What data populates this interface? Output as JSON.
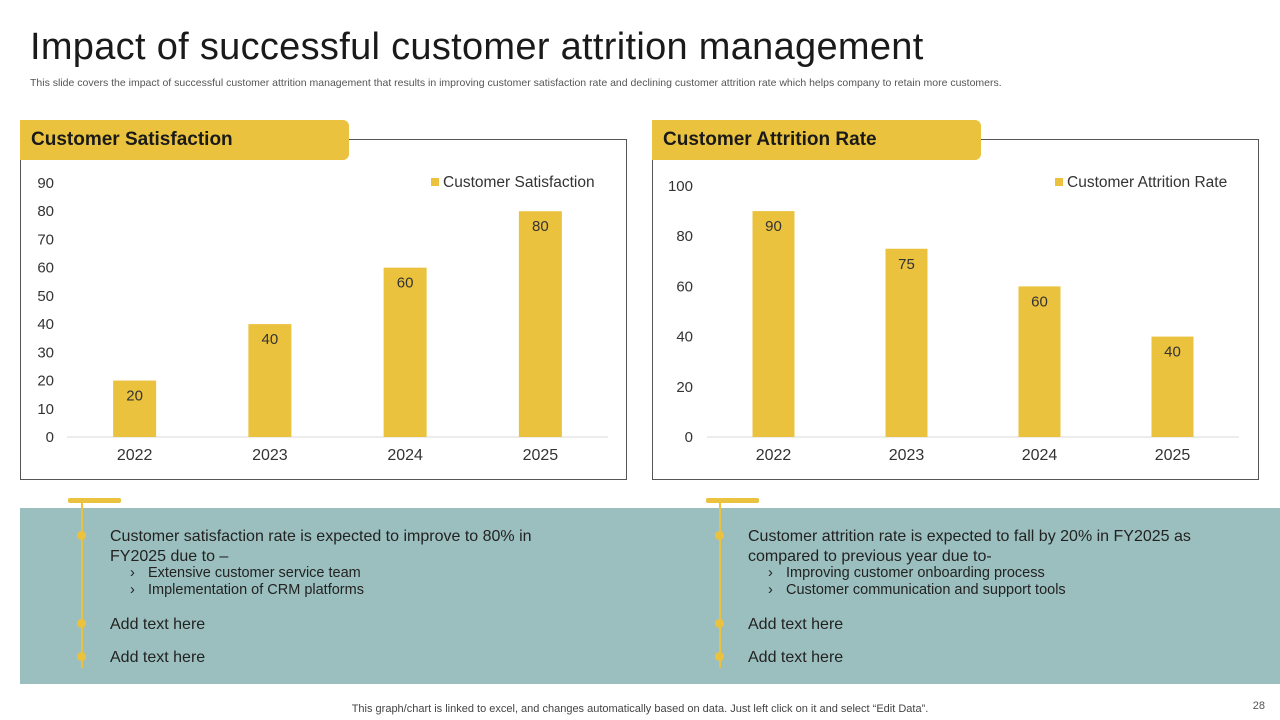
{
  "header": {
    "title": "Impact of successful customer attrition management",
    "subtitle": "This slide covers the impact of successful customer attrition management that results in improving customer satisfaction rate and declining customer attrition rate which helps company to retain more customers."
  },
  "chart_data": [
    {
      "type": "bar",
      "title": "Customer Satisfaction",
      "categories": [
        "2022",
        "2023",
        "2024",
        "2025"
      ],
      "series": [
        {
          "name": "Customer Satisfaction",
          "values": [
            20,
            40,
            60,
            80
          ]
        }
      ],
      "yticks": [
        0,
        10,
        20,
        30,
        40,
        50,
        60,
        70,
        80,
        90
      ],
      "ylim": [
        0,
        90
      ],
      "legend": "top-right",
      "xlabel": "",
      "ylabel": "",
      "color": "#EBC23E"
    },
    {
      "type": "bar",
      "title": "Customer Attrition Rate",
      "categories": [
        "2022",
        "2023",
        "2024",
        "2025"
      ],
      "series": [
        {
          "name": "Customer Attrition Rate",
          "values": [
            90,
            75,
            60,
            40
          ]
        }
      ],
      "yticks": [
        0,
        20,
        40,
        60,
        80,
        100
      ],
      "ylim": [
        0,
        100
      ],
      "legend": "top-right",
      "xlabel": "",
      "ylabel": "",
      "color": "#EBC23E"
    }
  ],
  "bottom": {
    "left": {
      "main_text": "Customer satisfaction rate is expected to improve to 80% in FY2025 due to –",
      "subitems": [
        "Extensive customer service team",
        "Implementation of CRM platforms"
      ],
      "extra": [
        "Add text here",
        "Add text here"
      ]
    },
    "right": {
      "main_text": "Customer attrition rate is expected to fall by 20% in FY2025 as compared to previous year due to-",
      "subitems": [
        "Improving customer onboarding process",
        "Customer communication and support tools"
      ],
      "extra": [
        "Add text here",
        "Add text here"
      ]
    },
    "chevron": "›"
  },
  "footer": {
    "note": "This graph/chart is linked to excel,  and changes automatically based on data. Just left click on it and select “Edit Data”.",
    "page_number": "28"
  },
  "colors": {
    "accent": "#EBC23E",
    "band": "#9BBFBE"
  }
}
